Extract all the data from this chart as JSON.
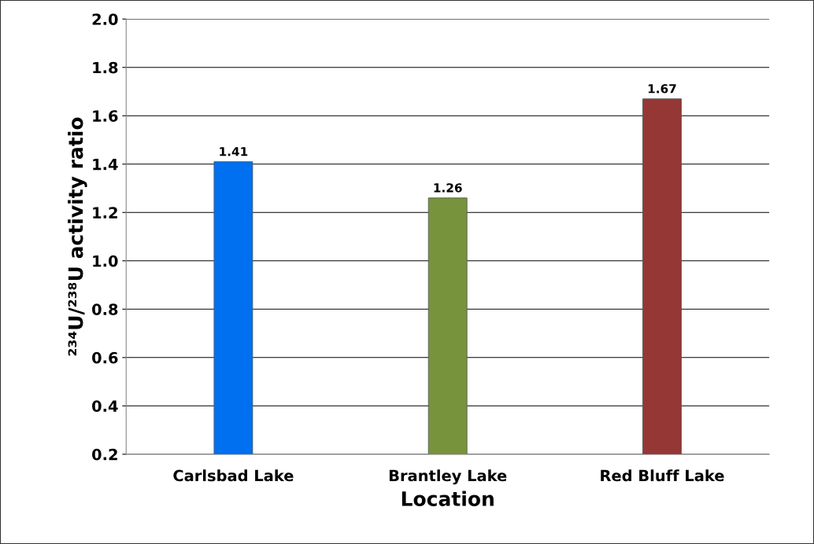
{
  "chart_data": {
    "type": "bar",
    "xlabel": "Location",
    "ylabel": "²³⁴U/²³⁸U activity ratio",
    "categories": [
      "Carlsbad Lake",
      "Brantley Lake",
      "Red Bluff Lake"
    ],
    "values": [
      1.41,
      1.26,
      1.67
    ],
    "colors": [
      "#0070f0",
      "#77933c",
      "#953735"
    ],
    "ylim": [
      0.2,
      2.0
    ],
    "yticks": [
      0.2,
      0.4,
      0.6,
      0.8,
      {
        "value": 1,
        "label": "1.0"
      },
      1.2,
      1.4,
      1.6,
      1.8,
      {
        "value": 2,
        "label": "2.0"
      }
    ],
    "grid": "y",
    "data_labels": true
  }
}
